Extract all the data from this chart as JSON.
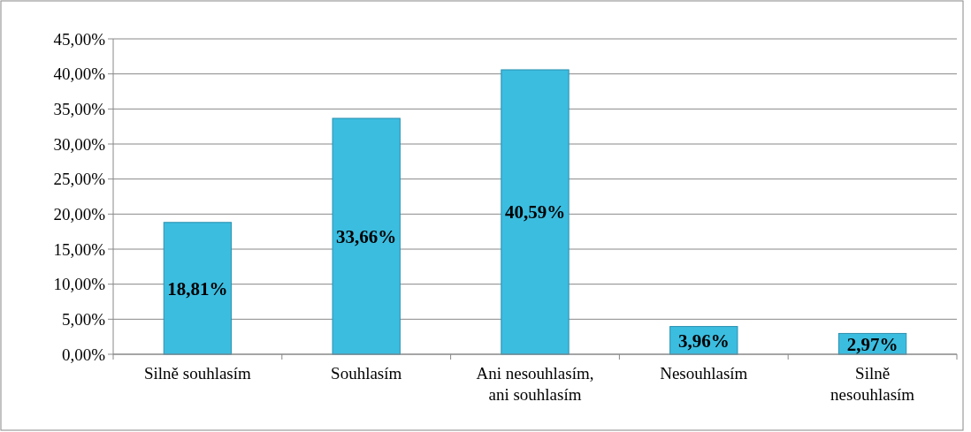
{
  "chart_data": {
    "type": "bar",
    "categories": [
      "Silně souhlasím",
      "Souhlasím",
      "Ani nesouhlasím,\nani souhlasím",
      "Nesouhlasím",
      "Silně\nnesouhlasím"
    ],
    "values": [
      18.81,
      33.66,
      40.59,
      3.96,
      2.97
    ],
    "value_labels": [
      "18,81%",
      "33,66%",
      "40,59%",
      "3,96%",
      "2,97%"
    ],
    "color": "#3bbde0",
    "ylim": [
      0,
      45
    ],
    "yticks": [
      {
        "value": 0,
        "label": "0,00%"
      },
      {
        "value": 5,
        "label": "5,00%"
      },
      {
        "value": 10,
        "label": "10,00%"
      },
      {
        "value": 15,
        "label": "15,00%"
      },
      {
        "value": 20,
        "label": "20,00%"
      },
      {
        "value": 25,
        "label": "25,00%"
      },
      {
        "value": 30,
        "label": "30,00%"
      },
      {
        "value": 35,
        "label": "35,00%"
      },
      {
        "value": 40,
        "label": "40,00%"
      },
      {
        "value": 45,
        "label": "45,00%"
      }
    ],
    "grid": "y"
  }
}
